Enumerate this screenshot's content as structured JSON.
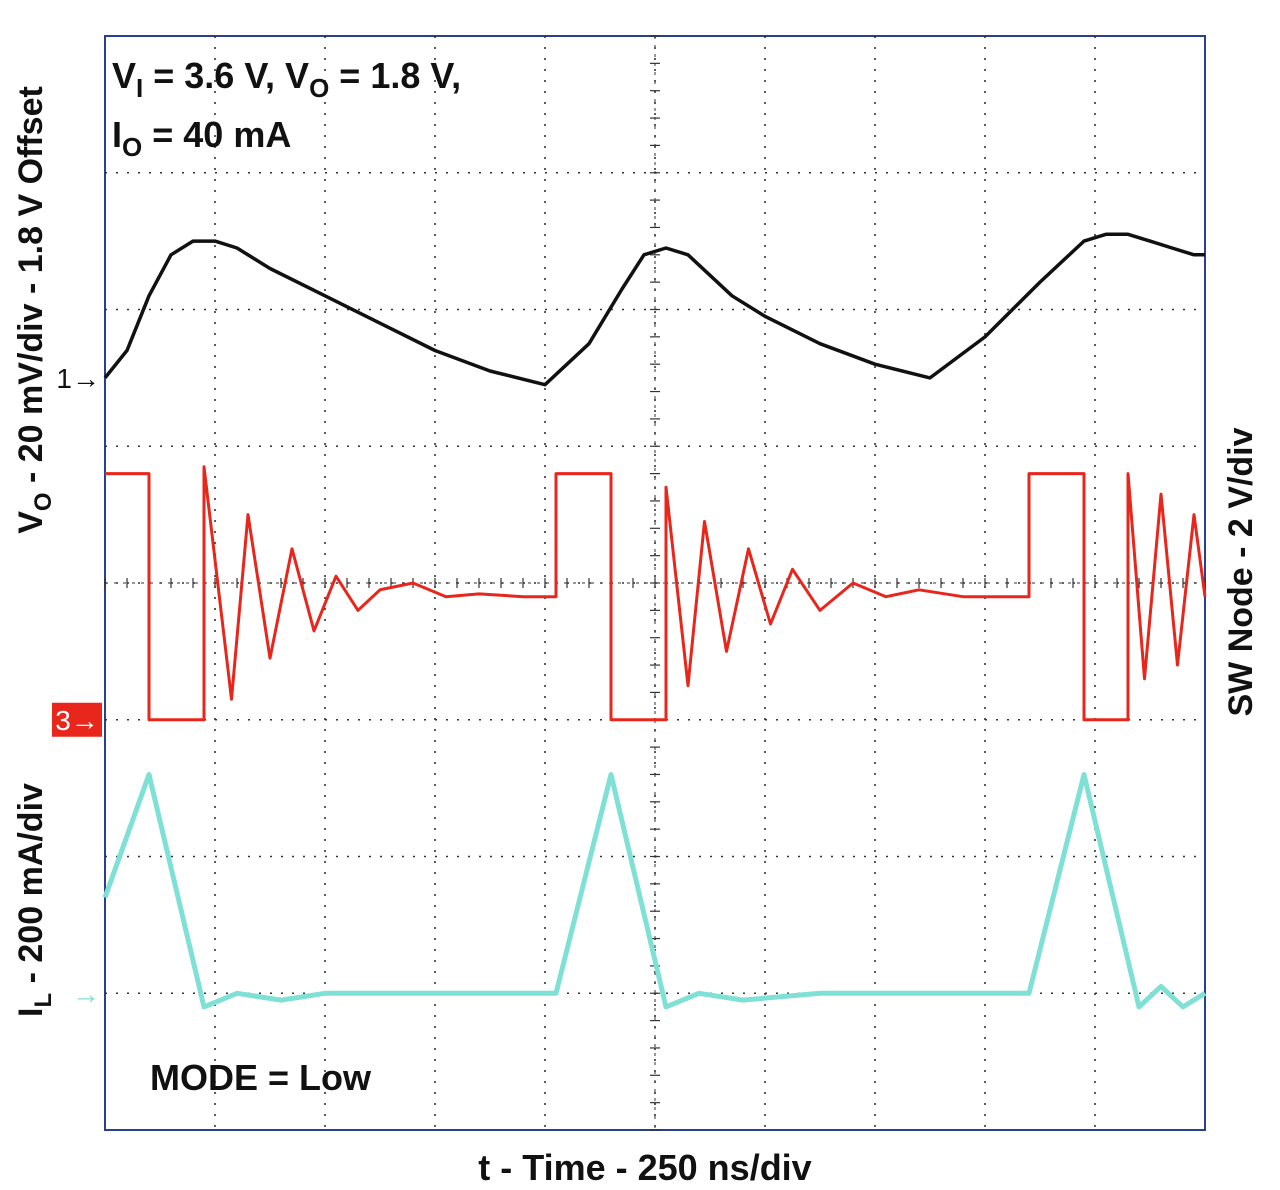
{
  "chart_data": {
    "type": "line",
    "title": "",
    "conditions": {
      "line1": {
        "v": "V",
        "v_sub": "I",
        "v_eq": " = 3.6 V, ",
        "vo": "V",
        "vo_sub": "O",
        "vo_eq": " = 1.8 V,"
      },
      "line2": {
        "i": "I",
        "i_sub": "O",
        "i_eq": " = 40 mA"
      }
    },
    "annotation": "MODE = Low",
    "xlabel": "t - Time - 250 ns/div",
    "ylabel_left_vo": {
      "pre": "V",
      "sub": "O",
      "post": " - 20 mV/div - 1.8 V Offset"
    },
    "ylabel_left_il": {
      "pre": "I",
      "sub": "L",
      "post": " - 200 mA/div"
    },
    "ylabel_right": "SW Node - 2 V/div",
    "x_divisions": 10,
    "y_divisions": 8,
    "xlim": [
      0,
      10
    ],
    "ylim": [
      0,
      8
    ],
    "grid": true,
    "colors": {
      "vo": "#111111",
      "sw": "#e8261c",
      "il": "#7fe0d6",
      "grid": "#333333",
      "frame": "#2a3f8f",
      "marker3_bg": "#e8261c"
    },
    "channel_markers": [
      {
        "channel": "1",
        "label": "1→",
        "level_div": 5.5,
        "color": "#111111"
      },
      {
        "channel": "3",
        "label": "3→",
        "level_div": 3.0,
        "color": "#e8261c"
      },
      {
        "channel": "4",
        "label": "→",
        "level_div": 1.0,
        "color": "#7fe0d6"
      }
    ],
    "series": [
      {
        "key": "vo",
        "x": [
          0,
          0.2,
          0.4,
          0.6,
          0.8,
          1.0,
          1.2,
          1.5,
          2.0,
          2.5,
          3.0,
          3.5,
          4.0,
          4.4,
          4.7,
          4.9,
          5.1,
          5.3,
          5.5,
          5.7,
          6.0,
          6.5,
          7.0,
          7.5,
          8.0,
          8.5,
          8.9,
          9.1,
          9.3,
          9.5,
          9.7,
          9.9,
          10.0
        ],
        "y": [
          5.5,
          5.7,
          6.1,
          6.4,
          6.5,
          6.5,
          6.45,
          6.3,
          6.1,
          5.9,
          5.7,
          5.55,
          5.45,
          5.75,
          6.15,
          6.4,
          6.45,
          6.4,
          6.25,
          6.1,
          5.95,
          5.75,
          5.6,
          5.5,
          5.8,
          6.2,
          6.5,
          6.55,
          6.55,
          6.5,
          6.45,
          6.4,
          6.4
        ]
      },
      {
        "key": "sw",
        "x": [
          0,
          0.4,
          0.4,
          0.9,
          0.9,
          1.15,
          1.3,
          1.5,
          1.7,
          1.9,
          2.1,
          2.3,
          2.5,
          2.8,
          3.1,
          3.4,
          3.8,
          4.1,
          4.1,
          4.6,
          4.6,
          5.1,
          5.1,
          5.3,
          5.45,
          5.65,
          5.85,
          6.05,
          6.25,
          6.5,
          6.8,
          7.1,
          7.4,
          7.8,
          8.4,
          8.4,
          8.9,
          8.9,
          9.3,
          9.3,
          9.45,
          9.6,
          9.75,
          9.9,
          10.0
        ],
        "y": [
          4.8,
          4.8,
          3.0,
          3.0,
          4.85,
          3.15,
          4.5,
          3.45,
          4.25,
          3.65,
          4.05,
          3.8,
          3.95,
          4.0,
          3.9,
          3.92,
          3.9,
          3.9,
          4.8,
          4.8,
          3.0,
          3.0,
          4.7,
          3.25,
          4.45,
          3.5,
          4.25,
          3.7,
          4.1,
          3.8,
          4.0,
          3.9,
          3.95,
          3.9,
          3.9,
          4.8,
          4.8,
          3.0,
          3.0,
          4.8,
          3.3,
          4.65,
          3.4,
          4.5,
          3.9
        ]
      },
      {
        "key": "il",
        "x": [
          0,
          0.4,
          0.9,
          1.2,
          1.6,
          2.0,
          3.0,
          4.1,
          4.6,
          5.1,
          5.4,
          5.8,
          6.5,
          7.5,
          8.4,
          8.9,
          9.4,
          9.6,
          9.8,
          10.0
        ],
        "y": [
          1.7,
          2.6,
          0.9,
          1.0,
          0.95,
          1.0,
          1.0,
          1.0,
          2.6,
          0.9,
          1.0,
          0.95,
          1.0,
          1.0,
          1.0,
          2.6,
          0.9,
          1.05,
          0.9,
          1.0
        ]
      }
    ]
  }
}
